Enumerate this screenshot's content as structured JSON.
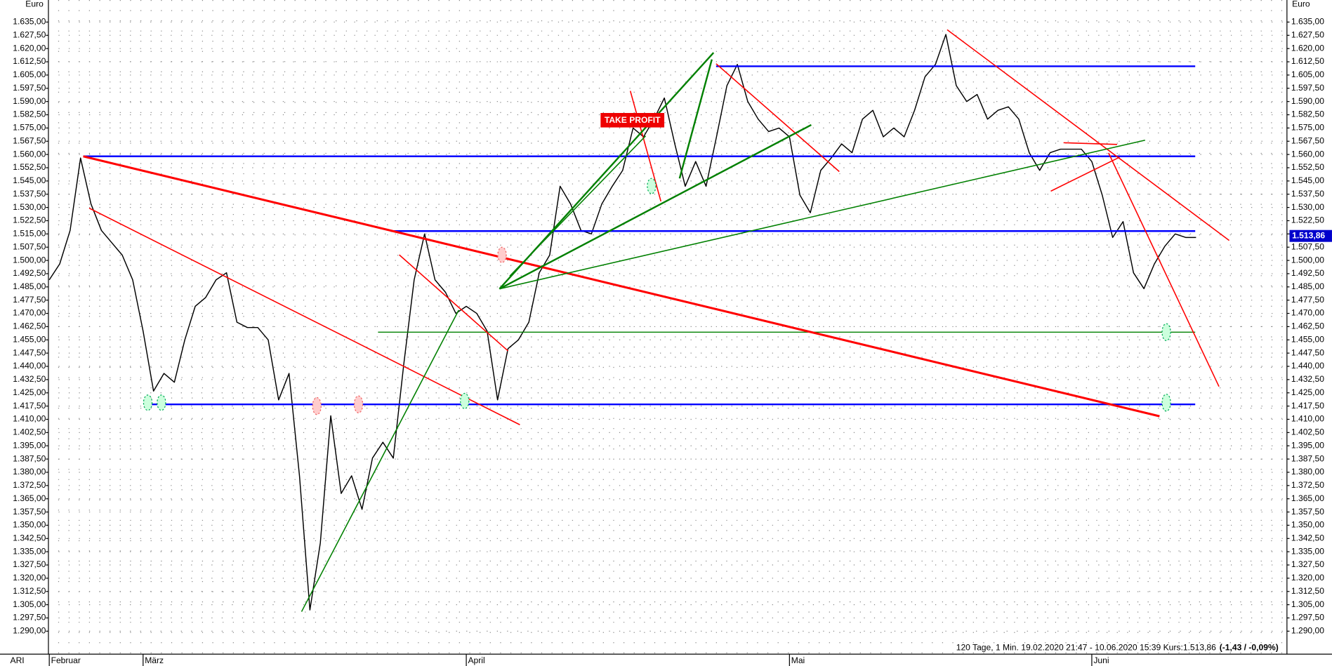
{
  "chart_data": {
    "type": "line",
    "y_unit": "Euro",
    "instrument": "ARI",
    "color": "#000000",
    "categories": [
      "Februar",
      null,
      null,
      null,
      null,
      null,
      null,
      null,
      null,
      "März",
      null,
      null,
      null,
      null,
      null,
      null,
      null,
      null,
      null,
      null,
      null,
      null,
      null,
      null,
      null,
      null,
      null,
      null,
      null,
      null,
      null,
      null,
      null,
      null,
      null,
      null,
      null,
      null,
      null,
      null,
      "April",
      null,
      null,
      null,
      null,
      null,
      null,
      null,
      null,
      null,
      null,
      null,
      null,
      null,
      null,
      null,
      null,
      null,
      null,
      null,
      null,
      null,
      null,
      null,
      null,
      null,
      null,
      null,
      null,
      null,
      null,
      "Mai",
      null,
      null,
      null,
      null,
      null,
      null,
      null,
      null,
      null,
      null,
      null,
      null,
      null,
      null,
      null,
      null,
      null,
      null,
      null,
      null,
      null,
      null,
      null,
      null,
      null,
      null,
      null,
      null,
      "Juni",
      null,
      null,
      null,
      null,
      null,
      null,
      null,
      null,
      null,
      null
    ],
    "values": [
      1489,
      1498,
      1517,
      1558,
      1532,
      1517,
      1510,
      1503,
      1489,
      1460,
      1426,
      1436,
      1431,
      1455,
      1474,
      1479,
      1489,
      1493,
      1465,
      1462,
      1462,
      1455,
      1421,
      1436,
      1378,
      1302,
      1340,
      1412,
      1368,
      1378,
      1359,
      1388,
      1397,
      1388,
      1441,
      1489,
      1515,
      1489,
      1482,
      1470,
      1474,
      1470,
      1460,
      1421,
      1450,
      1455,
      1465,
      1493,
      1503,
      1542,
      1532,
      1517,
      1515,
      1532,
      1542,
      1551,
      1575,
      1570,
      1580,
      1592,
      1566,
      1542,
      1556,
      1542,
      1570,
      1599,
      1611,
      1590,
      1580,
      1573,
      1575,
      1570,
      1537,
      1527,
      1551,
      1558,
      1566,
      1561,
      1580,
      1585,
      1570,
      1575,
      1570,
      1585,
      1604,
      1611,
      1628,
      1599,
      1590,
      1594,
      1580,
      1585,
      1587,
      1580,
      1561,
      1551,
      1561,
      1563,
      1563,
      1563,
      1556,
      1537,
      1513,
      1522,
      1493,
      1484,
      1498,
      1508,
      1515,
      1513,
      1513
    ],
    "ylim": [
      1277,
      1647.5
    ],
    "yticks": [
      {
        "value": 1635,
        "label": "1.635,00"
      },
      {
        "value": 1627.5,
        "label": "1.627,50"
      },
      {
        "value": 1620,
        "label": "1.620,00"
      },
      {
        "value": 1612.5,
        "label": "1.612,50"
      },
      {
        "value": 1605,
        "label": "1.605,00"
      },
      {
        "value": 1597.5,
        "label": "1.597,50"
      },
      {
        "value": 1590,
        "label": "1.590,00"
      },
      {
        "value": 1582.5,
        "label": "1.582,50"
      },
      {
        "value": 1575,
        "label": "1.575,00"
      },
      {
        "value": 1567.5,
        "label": "1.567,50"
      },
      {
        "value": 1560,
        "label": "1.560,00"
      },
      {
        "value": 1552.5,
        "label": "1.552,50"
      },
      {
        "value": 1545,
        "label": "1.545,00"
      },
      {
        "value": 1537.5,
        "label": "1.537,50"
      },
      {
        "value": 1530,
        "label": "1.530,00"
      },
      {
        "value": 1522.5,
        "label": "1.522,50"
      },
      {
        "value": 1515,
        "label": "1.515,00"
      },
      {
        "value": 1507.5,
        "label": "1.507,50"
      },
      {
        "value": 1500,
        "label": "1.500,00"
      },
      {
        "value": 1492.5,
        "label": "1.492,50"
      },
      {
        "value": 1485,
        "label": "1.485,00"
      },
      {
        "value": 1477.5,
        "label": "1.477,50"
      },
      {
        "value": 1470,
        "label": "1.470,00"
      },
      {
        "value": 1462.5,
        "label": "1.462,50"
      },
      {
        "value": 1455,
        "label": "1.455,00"
      },
      {
        "value": 1447.5,
        "label": "1.447,50"
      },
      {
        "value": 1440,
        "label": "1.440,00"
      },
      {
        "value": 1432.5,
        "label": "1.432,50"
      },
      {
        "value": 1425,
        "label": "1.425,00"
      },
      {
        "value": 1417.5,
        "label": "1.417,50"
      },
      {
        "value": 1410,
        "label": "1.410,00"
      },
      {
        "value": 1402.5,
        "label": "1.402,50"
      },
      {
        "value": 1395,
        "label": "1.395,00"
      },
      {
        "value": 1387.5,
        "label": "1.387,50"
      },
      {
        "value": 1380,
        "label": "1.380,00"
      },
      {
        "value": 1372.5,
        "label": "1.372,50"
      },
      {
        "value": 1365,
        "label": "1.365,00"
      },
      {
        "value": 1357.5,
        "label": "1.357,50"
      },
      {
        "value": 1350,
        "label": "1.350,00"
      },
      {
        "value": 1342.5,
        "label": "1.342,50"
      },
      {
        "value": 1335,
        "label": "1.335,00"
      },
      {
        "value": 1327.5,
        "label": "1.327,50"
      },
      {
        "value": 1320,
        "label": "1.320,00"
      },
      {
        "value": 1312.5,
        "label": "1.312,50"
      },
      {
        "value": 1305,
        "label": "1.305,00"
      },
      {
        "value": 1297.5,
        "label": "1.297,50"
      },
      {
        "value": 1290,
        "label": "1.290,00"
      }
    ],
    "grid": true,
    "last_price": {
      "value": 1513.86,
      "label": "1.513,86"
    },
    "annotation": "TAKE PROFIT",
    "info": {
      "text": "120 Tage, 1 Min. 19.02.2020 21:47 - 10.06.2020 15:39  Kurs:1.513,86",
      "change": "(-1,43 / -0,09%)"
    }
  }
}
